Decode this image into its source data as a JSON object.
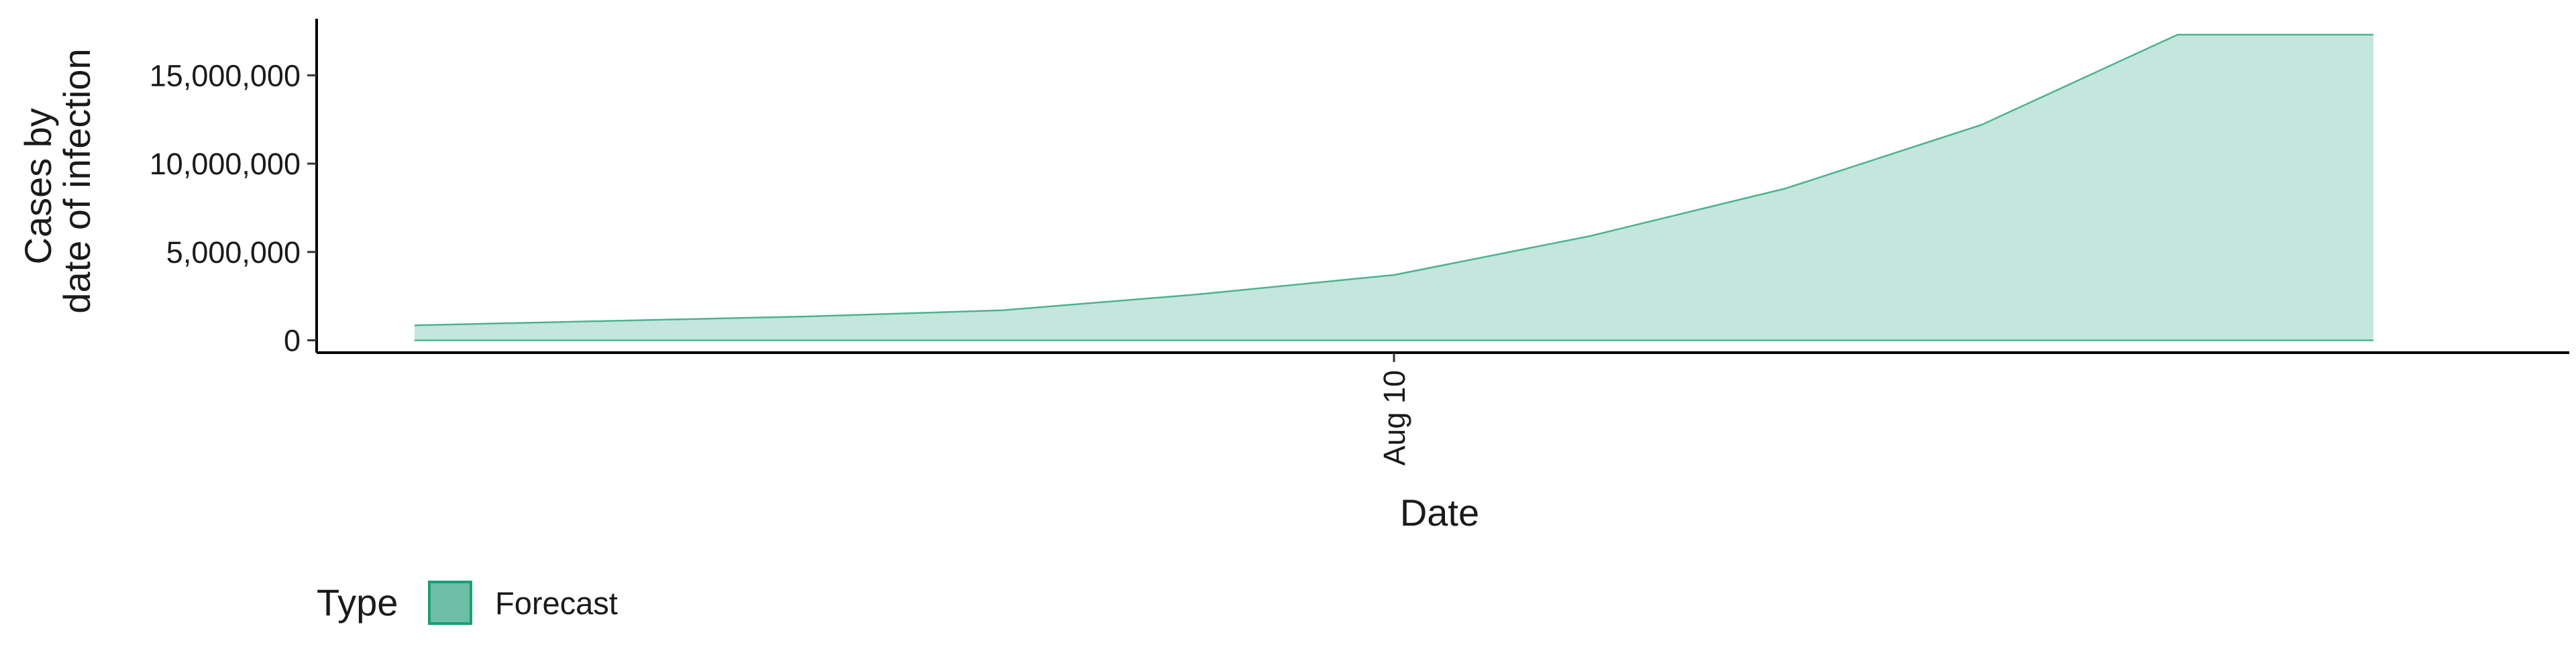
{
  "chart_data": {
    "type": "area",
    "title": "",
    "xlabel": "Date",
    "ylabel": [
      "Cases by",
      "date of infection"
    ],
    "x": [
      "2020-07-31",
      "2020-08-02",
      "2020-08-04",
      "2020-08-06",
      "2020-08-08",
      "2020-08-10",
      "2020-08-12",
      "2020-08-14",
      "2020-08-16",
      "2020-08-18",
      "2020-08-20"
    ],
    "x_ticks": [
      {
        "date": "2020-08-10",
        "label": "Aug 10"
      }
    ],
    "xlim": [
      "2020-07-30",
      "2020-08-22"
    ],
    "series": [
      {
        "name": "Forecast",
        "upper": [
          850000,
          1100000,
          1350000,
          1700000,
          2600000,
          3700000,
          5900000,
          8600000,
          12200000,
          17300000,
          17300000
        ],
        "lower": [
          0,
          0,
          0,
          0,
          0,
          0,
          0,
          0,
          0,
          0,
          0
        ]
      }
    ],
    "upper_x": [
      "2020-07-31",
      "2020-08-02",
      "2020-08-04",
      "2020-08-06",
      "2020-08-08",
      "2020-08-10",
      "2020-08-12",
      "2020-08-14",
      "2020-08-16",
      "2020-08-18",
      "2020-08-20"
    ],
    "y_ticks": [
      {
        "value": 0,
        "label": "0"
      },
      {
        "value": 5000000,
        "label": "5,000,000"
      },
      {
        "value": 10000000,
        "label": "10,000,000"
      },
      {
        "value": 15000000,
        "label": "15,000,000"
      }
    ],
    "ylim": [
      -700000,
      18200000
    ],
    "grid": false,
    "legend": {
      "title": "Type",
      "placement": "bottom-left",
      "entries": [
        {
          "label": "Forecast",
          "fill": "#6cbfa5",
          "stroke": "#1b9e77"
        }
      ]
    },
    "colors": {
      "area_fill": "#c4e6dc",
      "area_line": "#4cb290"
    }
  }
}
